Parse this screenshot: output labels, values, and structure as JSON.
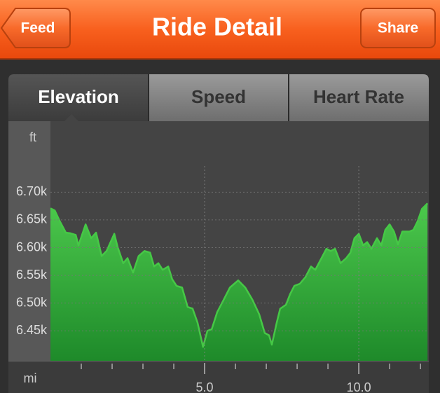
{
  "header": {
    "title": "Ride Detail",
    "back_button": "Feed",
    "action_button": "Share"
  },
  "tabs": [
    "Elevation",
    "Speed",
    "Heart Rate"
  ],
  "chart_data": {
    "type": "area",
    "y_label": "ft",
    "x_label": "mi",
    "color": "#46c846",
    "grid": true,
    "xlim": [
      0,
      12.27
    ],
    "ylim": [
      6396,
      6828
    ],
    "yticks": [
      {
        "value": 6450,
        "label": "6.45k"
      },
      {
        "value": 6500,
        "label": "6.50k"
      },
      {
        "value": 6550,
        "label": "6.55k"
      },
      {
        "value": 6600,
        "label": "6.60k"
      },
      {
        "value": 6650,
        "label": "6.65k"
      },
      {
        "value": 6700,
        "label": "6.70k"
      }
    ],
    "xticks": [
      {
        "value": 5,
        "label": "5.0"
      },
      {
        "value": 10,
        "label": "10.0"
      }
    ],
    "x_minor_ticks": [
      1,
      2,
      3,
      4,
      6,
      7,
      8,
      9,
      11,
      12
    ],
    "x": [
      0,
      0.14,
      0.3,
      0.5,
      0.64,
      0.82,
      0.91,
      1.14,
      1.32,
      1.48,
      1.66,
      1.82,
      1.95,
      2.07,
      2.18,
      2.36,
      2.5,
      2.68,
      2.86,
      3.05,
      3.23,
      3.36,
      3.5,
      3.64,
      3.82,
      3.95,
      4.09,
      4.27,
      4.45,
      4.61,
      4.77,
      4.95,
      5.09,
      5.23,
      5.41,
      5.59,
      5.82,
      6.09,
      6.32,
      6.55,
      6.77,
      6.95,
      7.09,
      7.18,
      7.34,
      7.45,
      7.64,
      7.77,
      7.91,
      8.09,
      8.27,
      8.45,
      8.59,
      8.77,
      8.95,
      9.09,
      9.23,
      9.41,
      9.59,
      9.73,
      9.86,
      10.0,
      10.14,
      10.27,
      10.41,
      10.59,
      10.73,
      10.86,
      11.0,
      11.14,
      11.27,
      11.41,
      11.64,
      11.77,
      11.91,
      12.05,
      12.23
    ],
    "values": [
      6671,
      6667,
      6648,
      6627,
      6626,
      6623,
      6604,
      6642,
      6617,
      6627,
      6585,
      6594,
      6610,
      6625,
      6601,
      6572,
      6581,
      6555,
      6585,
      6594,
      6591,
      6566,
      6572,
      6560,
      6566,
      6543,
      6531,
      6528,
      6493,
      6490,
      6465,
      6421,
      6450,
      6453,
      6484,
      6503,
      6528,
      6541,
      6528,
      6506,
      6480,
      6446,
      6442,
      6425,
      6465,
      6490,
      6497,
      6516,
      6531,
      6535,
      6547,
      6566,
      6560,
      6579,
      6598,
      6594,
      6598,
      6572,
      6581,
      6591,
      6617,
      6625,
      6604,
      6610,
      6598,
      6617,
      6604,
      6632,
      6642,
      6629,
      6606,
      6629,
      6629,
      6632,
      6648,
      6670,
      6680
    ]
  }
}
